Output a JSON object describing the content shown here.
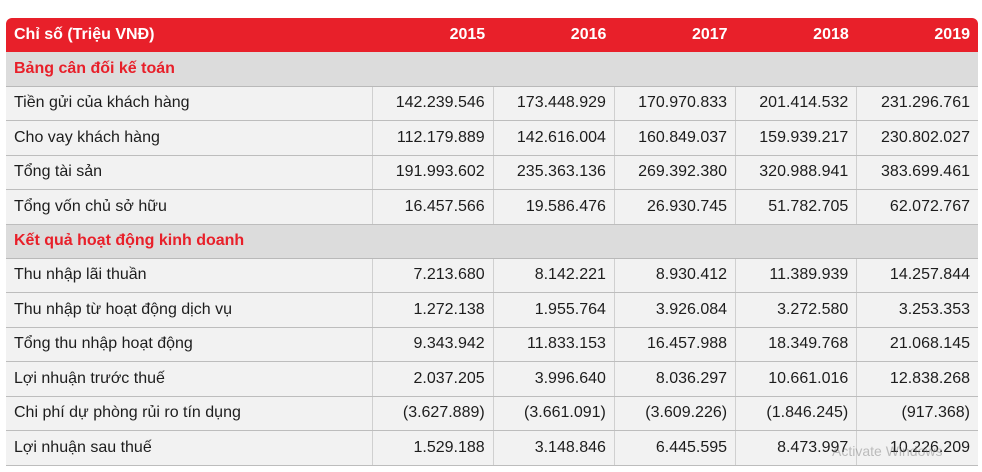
{
  "header": {
    "label": "Chỉ số (Triệu VNĐ)",
    "years": [
      "2015",
      "2016",
      "2017",
      "2018",
      "2019"
    ]
  },
  "sections": [
    {
      "title": "Bảng cân đối kế toán",
      "rows": [
        {
          "label": "Tiền gửi của khách hàng",
          "values": [
            "142.239.546",
            "173.448.929",
            "170.970.833",
            "201.414.532",
            "231.296.761"
          ]
        },
        {
          "label": "Cho vay khách hàng",
          "values": [
            "112.179.889",
            "142.616.004",
            "160.849.037",
            "159.939.217",
            "230.802.027"
          ]
        },
        {
          "label": "Tổng tài sản",
          "values": [
            "191.993.602",
            "235.363.136",
            "269.392.380",
            "320.988.941",
            "383.699.461"
          ]
        },
        {
          "label": "Tổng vốn chủ sở hữu",
          "values": [
            "16.457.566",
            "19.586.476",
            "26.930.745",
            "51.782.705",
            "62.072.767"
          ]
        }
      ]
    },
    {
      "title": "Kết quả hoạt động kinh doanh",
      "rows": [
        {
          "label": "Thu nhập lãi thuần",
          "values": [
            "7.213.680",
            "8.142.221",
            "8.930.412",
            "11.389.939",
            "14.257.844"
          ]
        },
        {
          "label": "Thu nhập từ hoạt động dịch vụ",
          "values": [
            "1.272.138",
            "1.955.764",
            "3.926.084",
            "3.272.580",
            "3.253.353"
          ]
        },
        {
          "label": "Tổng thu nhập hoạt động",
          "values": [
            "9.343.942",
            "11.833.153",
            "16.457.988",
            "18.349.768",
            "21.068.145"
          ]
        },
        {
          "label": "Lợi nhuận trước thuế",
          "values": [
            "2.037.205",
            "3.996.640",
            "8.036.297",
            "10.661.016",
            "12.838.268"
          ]
        },
        {
          "label": "Chi phí dự phòng rủi ro tín dụng",
          "values": [
            "(3.627.889)",
            "(3.661.091)",
            "(3.609.226)",
            "(1.846.245)",
            "(917.368)"
          ]
        },
        {
          "label": "Lợi nhuận sau thuế",
          "values": [
            "1.529.188",
            "3.148.846",
            "6.445.595",
            "8.473.997",
            "10.226.209"
          ]
        }
      ]
    }
  ],
  "watermark": "Activate Windows",
  "colors": {
    "header_bg": "#e8202a",
    "section_text": "#e8202a",
    "section_bg": "#dcdcdc",
    "row_bg": "#f2f2f2"
  }
}
